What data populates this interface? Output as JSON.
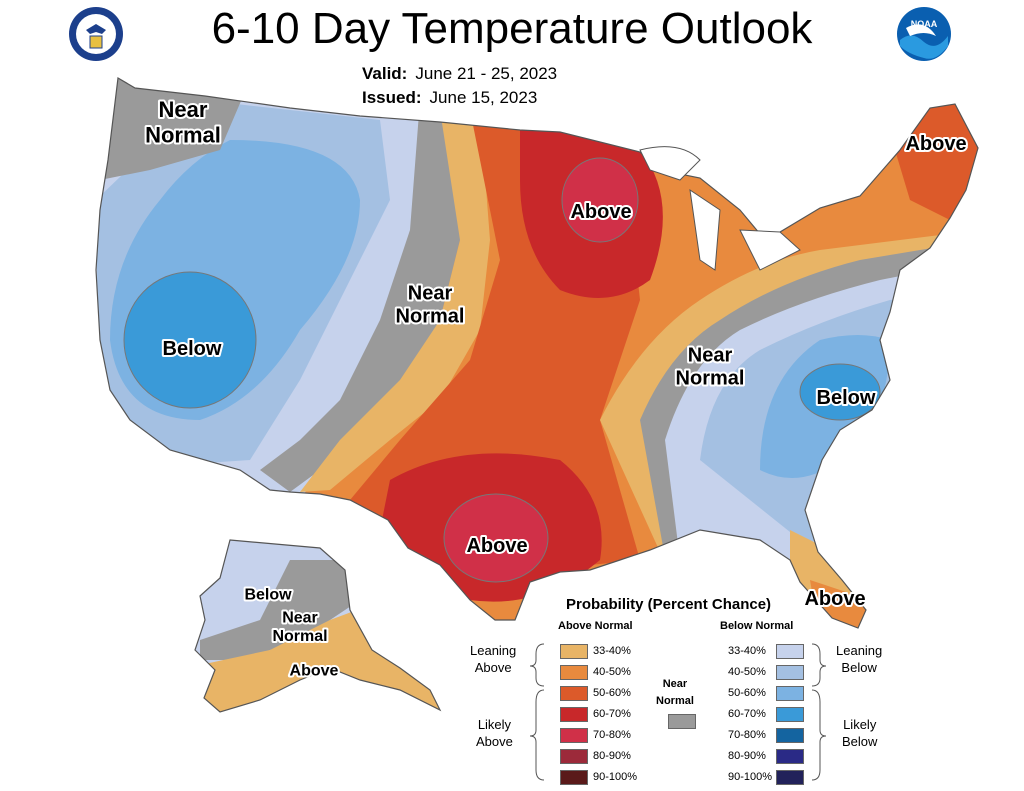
{
  "title": "6-10 Day Temperature Outlook",
  "valid": {
    "label": "Valid:",
    "value": "June 21 - 25, 2023"
  },
  "issued": {
    "label": "Issued:",
    "value": "June 15, 2023"
  },
  "logos": {
    "left": "doc-seal-icon",
    "right": "noaa-logo-icon"
  },
  "regions": [
    {
      "text": "Near\nNormal"
    },
    {
      "text": "Below"
    },
    {
      "text": "Near\nNormal"
    },
    {
      "text": "Above"
    },
    {
      "text": "Above"
    },
    {
      "text": "Near\nNormal"
    },
    {
      "text": "Below"
    },
    {
      "text": "Above"
    },
    {
      "text": "Above"
    },
    {
      "text": "Below"
    },
    {
      "text": "Near\nNormal"
    },
    {
      "text": "Above"
    }
  ],
  "legend": {
    "title": "Probability (Percent Chance)",
    "above_head": "Above Normal",
    "below_head": "Below Normal",
    "near_head": "Near\nNormal",
    "leaning_above": "Leaning\nAbove",
    "likely_above": "Likely\nAbove",
    "leaning_below": "Leaning\nBelow",
    "likely_below": "Likely\nBelow",
    "above": [
      {
        "range": "33-40%",
        "color": "#e8b466"
      },
      {
        "range": "40-50%",
        "color": "#e88a3e"
      },
      {
        "range": "50-60%",
        "color": "#dc5a2a"
      },
      {
        "range": "60-70%",
        "color": "#c8282a"
      },
      {
        "range": "70-80%",
        "color": "#d03048"
      },
      {
        "range": "80-90%",
        "color": "#9c2a3a"
      },
      {
        "range": "90-100%",
        "color": "#5a1a1a"
      }
    ],
    "below": [
      {
        "range": "33-40%",
        "color": "#c6d2ec"
      },
      {
        "range": "40-50%",
        "color": "#a4c0e2"
      },
      {
        "range": "50-60%",
        "color": "#7cb2e2"
      },
      {
        "range": "60-70%",
        "color": "#3a9ad8"
      },
      {
        "range": "70-80%",
        "color": "#1464a0"
      },
      {
        "range": "80-90%",
        "color": "#2a2a86"
      },
      {
        "range": "90-100%",
        "color": "#22225a"
      }
    ],
    "near_color": "#9a9a9a"
  }
}
